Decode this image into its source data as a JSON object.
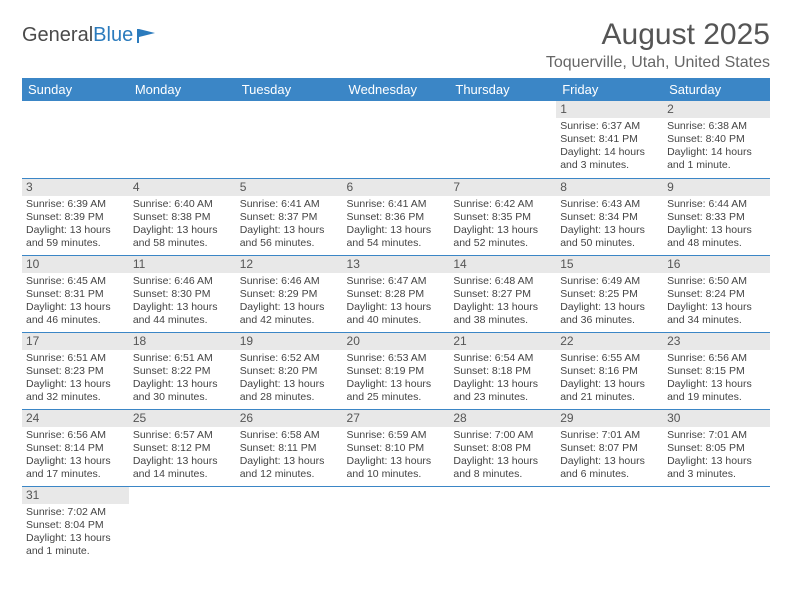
{
  "brand": {
    "part1": "General",
    "part2": "Blue"
  },
  "title": "August 2025",
  "location": "Toquerville, Utah, United States",
  "colors": {
    "header_bg": "#3b86c6",
    "header_text": "#ffffff",
    "daynum_bg": "#e8e8e8",
    "border": "#3b86c6",
    "text": "#444444",
    "title_color": "#555555"
  },
  "day_headers": [
    "Sunday",
    "Monday",
    "Tuesday",
    "Wednesday",
    "Thursday",
    "Friday",
    "Saturday"
  ],
  "weeks": [
    [
      null,
      null,
      null,
      null,
      null,
      {
        "n": "1",
        "sr": "Sunrise: 6:37 AM",
        "ss": "Sunset: 8:41 PM",
        "d1": "Daylight: 14 hours",
        "d2": "and 3 minutes."
      },
      {
        "n": "2",
        "sr": "Sunrise: 6:38 AM",
        "ss": "Sunset: 8:40 PM",
        "d1": "Daylight: 14 hours",
        "d2": "and 1 minute."
      }
    ],
    [
      {
        "n": "3",
        "sr": "Sunrise: 6:39 AM",
        "ss": "Sunset: 8:39 PM",
        "d1": "Daylight: 13 hours",
        "d2": "and 59 minutes."
      },
      {
        "n": "4",
        "sr": "Sunrise: 6:40 AM",
        "ss": "Sunset: 8:38 PM",
        "d1": "Daylight: 13 hours",
        "d2": "and 58 minutes."
      },
      {
        "n": "5",
        "sr": "Sunrise: 6:41 AM",
        "ss": "Sunset: 8:37 PM",
        "d1": "Daylight: 13 hours",
        "d2": "and 56 minutes."
      },
      {
        "n": "6",
        "sr": "Sunrise: 6:41 AM",
        "ss": "Sunset: 8:36 PM",
        "d1": "Daylight: 13 hours",
        "d2": "and 54 minutes."
      },
      {
        "n": "7",
        "sr": "Sunrise: 6:42 AM",
        "ss": "Sunset: 8:35 PM",
        "d1": "Daylight: 13 hours",
        "d2": "and 52 minutes."
      },
      {
        "n": "8",
        "sr": "Sunrise: 6:43 AM",
        "ss": "Sunset: 8:34 PM",
        "d1": "Daylight: 13 hours",
        "d2": "and 50 minutes."
      },
      {
        "n": "9",
        "sr": "Sunrise: 6:44 AM",
        "ss": "Sunset: 8:33 PM",
        "d1": "Daylight: 13 hours",
        "d2": "and 48 minutes."
      }
    ],
    [
      {
        "n": "10",
        "sr": "Sunrise: 6:45 AM",
        "ss": "Sunset: 8:31 PM",
        "d1": "Daylight: 13 hours",
        "d2": "and 46 minutes."
      },
      {
        "n": "11",
        "sr": "Sunrise: 6:46 AM",
        "ss": "Sunset: 8:30 PM",
        "d1": "Daylight: 13 hours",
        "d2": "and 44 minutes."
      },
      {
        "n": "12",
        "sr": "Sunrise: 6:46 AM",
        "ss": "Sunset: 8:29 PM",
        "d1": "Daylight: 13 hours",
        "d2": "and 42 minutes."
      },
      {
        "n": "13",
        "sr": "Sunrise: 6:47 AM",
        "ss": "Sunset: 8:28 PM",
        "d1": "Daylight: 13 hours",
        "d2": "and 40 minutes."
      },
      {
        "n": "14",
        "sr": "Sunrise: 6:48 AM",
        "ss": "Sunset: 8:27 PM",
        "d1": "Daylight: 13 hours",
        "d2": "and 38 minutes."
      },
      {
        "n": "15",
        "sr": "Sunrise: 6:49 AM",
        "ss": "Sunset: 8:25 PM",
        "d1": "Daylight: 13 hours",
        "d2": "and 36 minutes."
      },
      {
        "n": "16",
        "sr": "Sunrise: 6:50 AM",
        "ss": "Sunset: 8:24 PM",
        "d1": "Daylight: 13 hours",
        "d2": "and 34 minutes."
      }
    ],
    [
      {
        "n": "17",
        "sr": "Sunrise: 6:51 AM",
        "ss": "Sunset: 8:23 PM",
        "d1": "Daylight: 13 hours",
        "d2": "and 32 minutes."
      },
      {
        "n": "18",
        "sr": "Sunrise: 6:51 AM",
        "ss": "Sunset: 8:22 PM",
        "d1": "Daylight: 13 hours",
        "d2": "and 30 minutes."
      },
      {
        "n": "19",
        "sr": "Sunrise: 6:52 AM",
        "ss": "Sunset: 8:20 PM",
        "d1": "Daylight: 13 hours",
        "d2": "and 28 minutes."
      },
      {
        "n": "20",
        "sr": "Sunrise: 6:53 AM",
        "ss": "Sunset: 8:19 PM",
        "d1": "Daylight: 13 hours",
        "d2": "and 25 minutes."
      },
      {
        "n": "21",
        "sr": "Sunrise: 6:54 AM",
        "ss": "Sunset: 8:18 PM",
        "d1": "Daylight: 13 hours",
        "d2": "and 23 minutes."
      },
      {
        "n": "22",
        "sr": "Sunrise: 6:55 AM",
        "ss": "Sunset: 8:16 PM",
        "d1": "Daylight: 13 hours",
        "d2": "and 21 minutes."
      },
      {
        "n": "23",
        "sr": "Sunrise: 6:56 AM",
        "ss": "Sunset: 8:15 PM",
        "d1": "Daylight: 13 hours",
        "d2": "and 19 minutes."
      }
    ],
    [
      {
        "n": "24",
        "sr": "Sunrise: 6:56 AM",
        "ss": "Sunset: 8:14 PM",
        "d1": "Daylight: 13 hours",
        "d2": "and 17 minutes."
      },
      {
        "n": "25",
        "sr": "Sunrise: 6:57 AM",
        "ss": "Sunset: 8:12 PM",
        "d1": "Daylight: 13 hours",
        "d2": "and 14 minutes."
      },
      {
        "n": "26",
        "sr": "Sunrise: 6:58 AM",
        "ss": "Sunset: 8:11 PM",
        "d1": "Daylight: 13 hours",
        "d2": "and 12 minutes."
      },
      {
        "n": "27",
        "sr": "Sunrise: 6:59 AM",
        "ss": "Sunset: 8:10 PM",
        "d1": "Daylight: 13 hours",
        "d2": "and 10 minutes."
      },
      {
        "n": "28",
        "sr": "Sunrise: 7:00 AM",
        "ss": "Sunset: 8:08 PM",
        "d1": "Daylight: 13 hours",
        "d2": "and 8 minutes."
      },
      {
        "n": "29",
        "sr": "Sunrise: 7:01 AM",
        "ss": "Sunset: 8:07 PM",
        "d1": "Daylight: 13 hours",
        "d2": "and 6 minutes."
      },
      {
        "n": "30",
        "sr": "Sunrise: 7:01 AM",
        "ss": "Sunset: 8:05 PM",
        "d1": "Daylight: 13 hours",
        "d2": "and 3 minutes."
      }
    ],
    [
      {
        "n": "31",
        "sr": "Sunrise: 7:02 AM",
        "ss": "Sunset: 8:04 PM",
        "d1": "Daylight: 13 hours",
        "d2": "and 1 minute."
      },
      null,
      null,
      null,
      null,
      null,
      null
    ]
  ]
}
